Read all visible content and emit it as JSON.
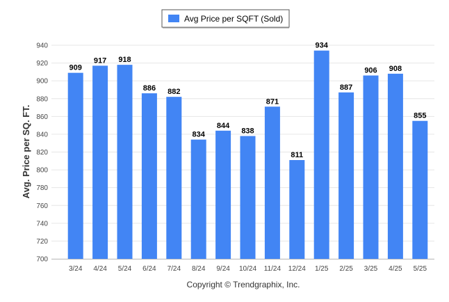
{
  "chart_data": {
    "type": "bar",
    "categories": [
      "3/24",
      "4/24",
      "5/24",
      "6/24",
      "7/24",
      "8/24",
      "9/24",
      "10/24",
      "11/24",
      "12/24",
      "1/25",
      "2/25",
      "3/25",
      "4/25",
      "5/25"
    ],
    "series": [
      {
        "name": "Avg Price per SQFT (Sold)",
        "values": [
          909,
          917,
          918,
          886,
          882,
          834,
          844,
          838,
          871,
          811,
          934,
          887,
          906,
          908,
          855
        ]
      }
    ],
    "ylabel": "Avg. Price per SQ. FT.",
    "xlabel": "",
    "ylim": [
      700,
      940
    ],
    "yticks": [
      700,
      720,
      740,
      760,
      780,
      800,
      820,
      840,
      860,
      880,
      900,
      920,
      940
    ],
    "grid": true,
    "legend": "top-center",
    "bar_color": "#4285f4",
    "data_labels": true
  },
  "footer": {
    "copyright": "Copyright © Trendgraphix, Inc."
  }
}
